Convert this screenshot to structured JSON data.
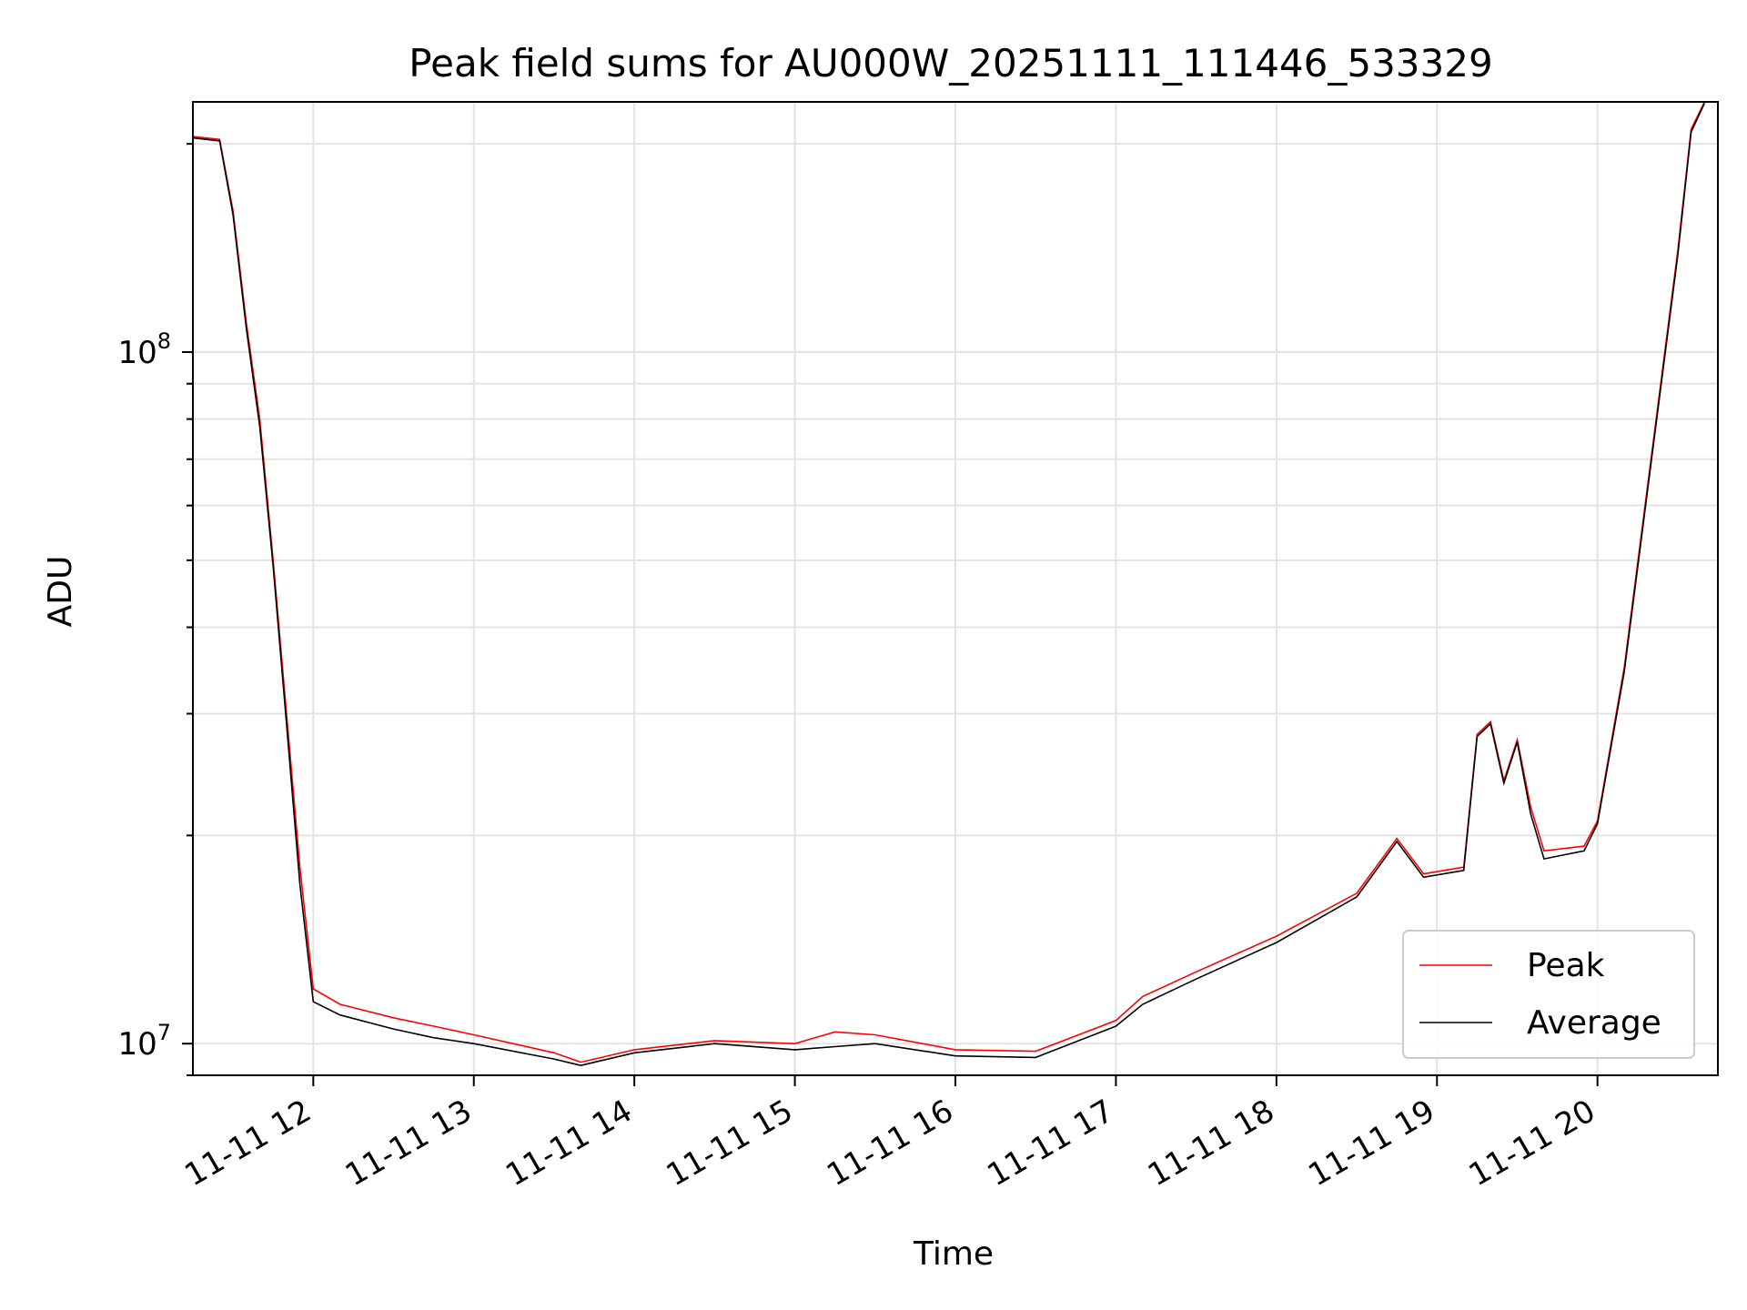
{
  "chart_data": {
    "type": "line",
    "title": "Peak field sums for AU000W_20251111_111446_533329",
    "xlabel": "Time",
    "ylabel": "ADU",
    "y_scale": "log",
    "ylim": [
      9000000,
      230000000
    ],
    "xlim": [
      "2025-11-11 11:15",
      "2025-11-11 20:45"
    ],
    "x_ticks": [
      {
        "t": "2025-11-11 12:00",
        "label": "11-11 12"
      },
      {
        "t": "2025-11-11 13:00",
        "label": "11-11 13"
      },
      {
        "t": "2025-11-11 14:00",
        "label": "11-11 14"
      },
      {
        "t": "2025-11-11 15:00",
        "label": "11-11 15"
      },
      {
        "t": "2025-11-11 16:00",
        "label": "11-11 16"
      },
      {
        "t": "2025-11-11 17:00",
        "label": "11-11 17"
      },
      {
        "t": "2025-11-11 18:00",
        "label": "11-11 18"
      },
      {
        "t": "2025-11-11 19:00",
        "label": "11-11 19"
      },
      {
        "t": "2025-11-11 20:00",
        "label": "11-11 20"
      }
    ],
    "y_ticks": [
      {
        "value": 10000000,
        "base": "10",
        "exp": "7"
      },
      {
        "value": 100000000,
        "base": "10",
        "exp": "8"
      }
    ],
    "grid": true,
    "legend_position": "lower-right",
    "series": [
      {
        "name": "Peak",
        "color": "#ff0000",
        "points": [
          [
            "2025-11-11 11:15",
            205000000
          ],
          [
            "2025-11-11 11:25",
            203000000
          ],
          [
            "2025-11-11 11:30",
            160000000
          ],
          [
            "2025-11-11 11:35",
            110000000
          ],
          [
            "2025-11-11 11:40",
            80000000
          ],
          [
            "2025-11-11 11:45",
            50000000
          ],
          [
            "2025-11-11 11:50",
            30000000
          ],
          [
            "2025-11-11 11:55",
            18000000
          ],
          [
            "2025-11-11 12:00",
            12000000
          ],
          [
            "2025-11-11 12:10",
            11400000
          ],
          [
            "2025-11-11 12:30",
            10900000
          ],
          [
            "2025-11-11 12:45",
            10600000
          ],
          [
            "2025-11-11 13:00",
            10300000
          ],
          [
            "2025-11-11 13:30",
            9700000
          ],
          [
            "2025-11-11 13:40",
            9400000
          ],
          [
            "2025-11-11 14:00",
            9800000
          ],
          [
            "2025-11-11 14:30",
            10100000
          ],
          [
            "2025-11-11 15:00",
            10000000
          ],
          [
            "2025-11-11 15:15",
            10400000
          ],
          [
            "2025-11-11 15:30",
            10300000
          ],
          [
            "2025-11-11 16:00",
            9800000
          ],
          [
            "2025-11-11 16:30",
            9750000
          ],
          [
            "2025-11-11 17:00",
            10800000
          ],
          [
            "2025-11-11 17:10",
            11700000
          ],
          [
            "2025-11-11 17:30",
            12700000
          ],
          [
            "2025-11-11 18:00",
            14300000
          ],
          [
            "2025-11-11 18:30",
            16500000
          ],
          [
            "2025-11-11 18:45",
            19800000
          ],
          [
            "2025-11-11 18:55",
            17600000
          ],
          [
            "2025-11-11 19:10",
            18000000
          ],
          [
            "2025-11-11 19:15",
            28000000
          ],
          [
            "2025-11-11 19:20",
            29200000
          ],
          [
            "2025-11-11 19:25",
            24000000
          ],
          [
            "2025-11-11 19:30",
            27500000
          ],
          [
            "2025-11-11 19:35",
            22000000
          ],
          [
            "2025-11-11 19:40",
            19000000
          ],
          [
            "2025-11-11 19:55",
            19300000
          ],
          [
            "2025-11-11 20:00",
            21000000
          ],
          [
            "2025-11-11 20:10",
            35000000
          ],
          [
            "2025-11-11 20:20",
            70000000
          ],
          [
            "2025-11-11 20:30",
            140000000
          ],
          [
            "2025-11-11 20:35",
            210000000
          ],
          [
            "2025-11-11 20:40",
            230000000
          ]
        ]
      },
      {
        "name": "Average",
        "color": "#000000",
        "points": [
          [
            "2025-11-11 11:15",
            204000000
          ],
          [
            "2025-11-11 11:25",
            202000000
          ],
          [
            "2025-11-11 11:30",
            158000000
          ],
          [
            "2025-11-11 11:35",
            108000000
          ],
          [
            "2025-11-11 11:40",
            78000000
          ],
          [
            "2025-11-11 11:45",
            49000000
          ],
          [
            "2025-11-11 11:50",
            29000000
          ],
          [
            "2025-11-11 11:55",
            17000000
          ],
          [
            "2025-11-11 12:00",
            11500000
          ],
          [
            "2025-11-11 12:10",
            11000000
          ],
          [
            "2025-11-11 12:30",
            10500000
          ],
          [
            "2025-11-11 12:45",
            10200000
          ],
          [
            "2025-11-11 13:00",
            10000000
          ],
          [
            "2025-11-11 13:30",
            9500000
          ],
          [
            "2025-11-11 13:40",
            9300000
          ],
          [
            "2025-11-11 14:00",
            9700000
          ],
          [
            "2025-11-11 14:30",
            10000000
          ],
          [
            "2025-11-11 15:00",
            9800000
          ],
          [
            "2025-11-11 15:15",
            9900000
          ],
          [
            "2025-11-11 15:30",
            10000000
          ],
          [
            "2025-11-11 16:00",
            9600000
          ],
          [
            "2025-11-11 16:30",
            9550000
          ],
          [
            "2025-11-11 17:00",
            10600000
          ],
          [
            "2025-11-11 17:10",
            11400000
          ],
          [
            "2025-11-11 17:30",
            12400000
          ],
          [
            "2025-11-11 18:00",
            14000000
          ],
          [
            "2025-11-11 18:30",
            16300000
          ],
          [
            "2025-11-11 18:45",
            19600000
          ],
          [
            "2025-11-11 18:55",
            17400000
          ],
          [
            "2025-11-11 19:10",
            17800000
          ],
          [
            "2025-11-11 19:15",
            27800000
          ],
          [
            "2025-11-11 19:20",
            29000000
          ],
          [
            "2025-11-11 19:25",
            23800000
          ],
          [
            "2025-11-11 19:30",
            27300000
          ],
          [
            "2025-11-11 19:35",
            21500000
          ],
          [
            "2025-11-11 19:40",
            18500000
          ],
          [
            "2025-11-11 19:55",
            19000000
          ],
          [
            "2025-11-11 20:00",
            20800000
          ],
          [
            "2025-11-11 20:10",
            34500000
          ],
          [
            "2025-11-11 20:20",
            69000000
          ],
          [
            "2025-11-11 20:30",
            138000000
          ],
          [
            "2025-11-11 20:35",
            208000000
          ],
          [
            "2025-11-11 20:40",
            229000000
          ]
        ]
      }
    ]
  }
}
